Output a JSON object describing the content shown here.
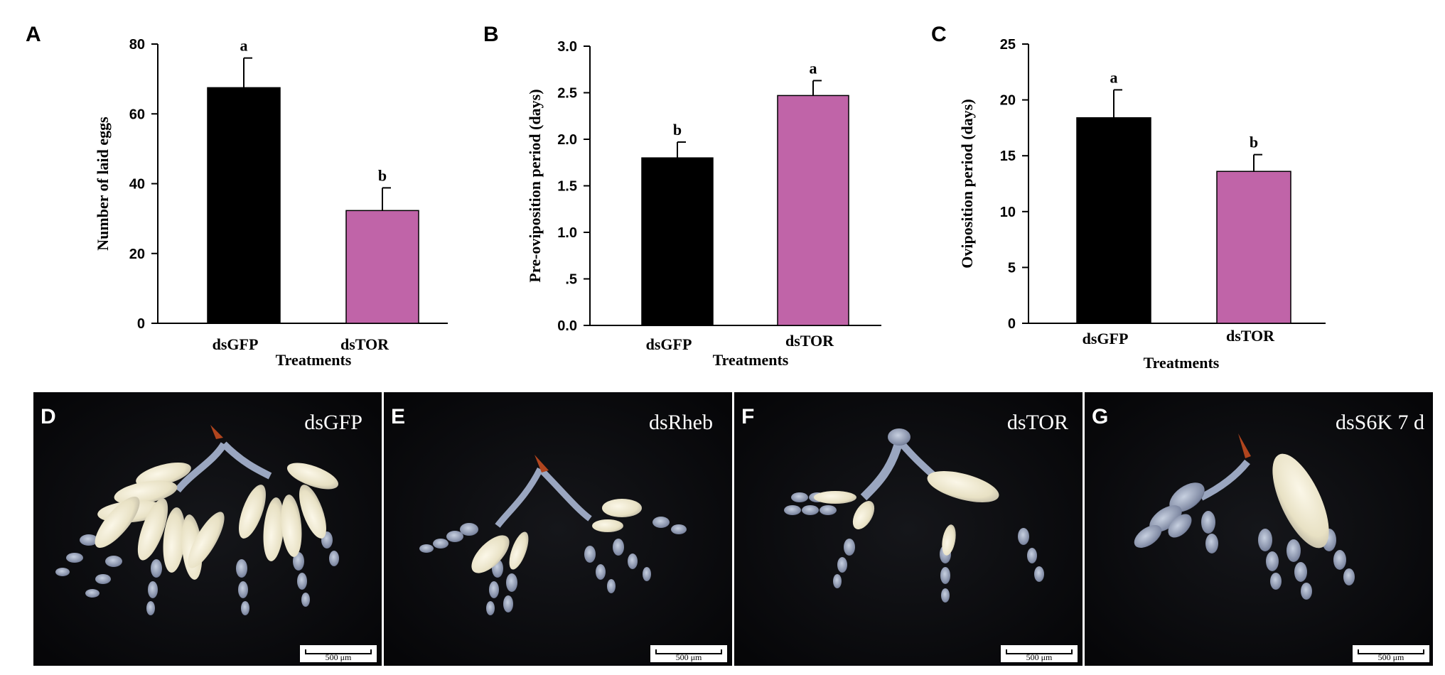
{
  "chart_data": [
    {
      "panel": "A",
      "type": "bar",
      "categories": [
        "dsGFP",
        "dsTOR"
      ],
      "values": [
        67.5,
        32.3
      ],
      "errors": [
        8.5,
        6.5
      ],
      "significance": [
        "a",
        "b"
      ],
      "bar_colors": [
        "#000000",
        "#c064a8"
      ],
      "xlabel": "Treatments",
      "ylabel": "Number of laid eggs",
      "ylim": [
        0,
        80
      ],
      "yticks": [
        0,
        20,
        40,
        60,
        80
      ],
      "ytick_labels": [
        "0",
        "20",
        "40",
        "60",
        "80"
      ]
    },
    {
      "panel": "B",
      "type": "bar",
      "categories": [
        "dsGFP",
        "dsTOR"
      ],
      "values": [
        1.8,
        2.47
      ],
      "errors": [
        0.17,
        0.16
      ],
      "significance": [
        "b",
        "a"
      ],
      "bar_colors": [
        "#000000",
        "#c064a8"
      ],
      "xlabel": "Treatments",
      "ylabel": "Pre-oviposition period (days)",
      "ylim": [
        0,
        3.0
      ],
      "yticks": [
        0,
        0.5,
        1.0,
        1.5,
        2.0,
        2.5,
        3.0
      ],
      "ytick_labels": [
        "0.0",
        ".5",
        "1.0",
        "1.5",
        "2.0",
        "2.5",
        "3.0"
      ]
    },
    {
      "panel": "C",
      "type": "bar",
      "categories": [
        "dsGFP",
        "dsTOR"
      ],
      "values": [
        18.4,
        13.6
      ],
      "errors": [
        2.5,
        1.5
      ],
      "significance": [
        "a",
        "b"
      ],
      "bar_colors": [
        "#000000",
        "#c064a8"
      ],
      "xlabel": "Treatments",
      "ylabel": "Oviposition period (days)",
      "ylim": [
        0,
        25
      ],
      "yticks": [
        0,
        5,
        10,
        15,
        20,
        25
      ],
      "ytick_labels": [
        "0",
        "5",
        "10",
        "15",
        "20",
        "25"
      ]
    }
  ],
  "photos": [
    {
      "letter": "D",
      "label": "dsGFP",
      "scale": "500 μm"
    },
    {
      "letter": "E",
      "label": "dsRheb",
      "scale": "500 μm"
    },
    {
      "letter": "F",
      "label": "dsTOR",
      "scale": "500 μm"
    },
    {
      "letter": "G",
      "label": "dsS6K  7 d",
      "scale": "500 μm"
    }
  ]
}
